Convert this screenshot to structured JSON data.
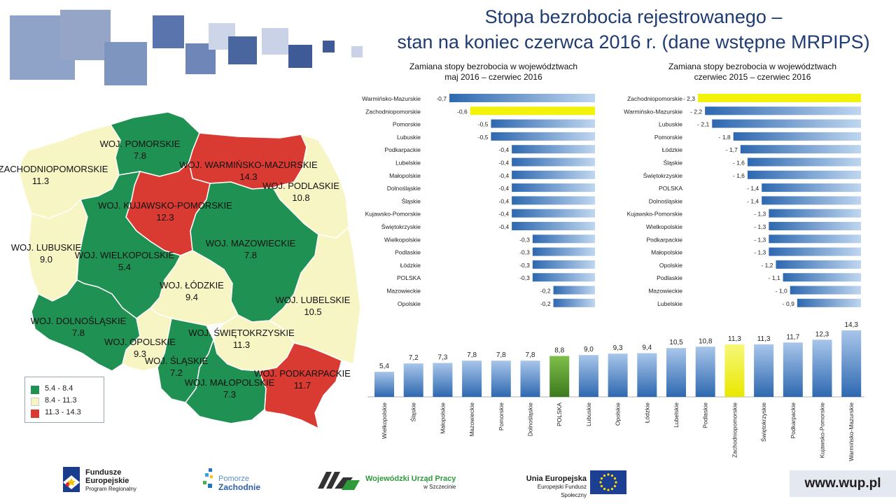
{
  "colors": {
    "green": "#1f9152",
    "cream": "#f7f5c4",
    "red": "#d93a32",
    "bar_blue": "#2e68b0",
    "bar_light": "#bfd6ef",
    "highlight_yellow": "#f2f20a",
    "polska_green": "#4e8a2a",
    "title_blue": "#1f3b73"
  },
  "title": {
    "line1": "Stopa bezrobocia rejestrowanego –",
    "line2": "stan na koniec czerwca 2016 r. (dane wstępne MRPIPS)"
  },
  "map": {
    "regions": [
      {
        "name": "WOJ. POMORSKIE",
        "value": "7.8",
        "color": "green"
      },
      {
        "name": "WOJ. ZACHODNIOPOMORSKIE",
        "value": "11.3",
        "color": "cream"
      },
      {
        "name": "WOJ. WARMIŃSKO-MAZURSKIE",
        "value": "14.3",
        "color": "red"
      },
      {
        "name": "WOJ. PODLASKIE",
        "value": "10.8",
        "color": "cream"
      },
      {
        "name": "WOJ. KUJAWSKO-POMORSKIE",
        "value": "12.3",
        "color": "red"
      },
      {
        "name": "WOJ. LUBUSKIE",
        "value": "9.0",
        "color": "cream"
      },
      {
        "name": "WOJ. WIELKOPOLSKIE",
        "value": "5.4",
        "color": "green"
      },
      {
        "name": "WOJ. MAZOWIECKIE",
        "value": "7.8",
        "color": "green"
      },
      {
        "name": "WOJ. ŁÓDZKIE",
        "value": "9.4",
        "color": "cream"
      },
      {
        "name": "WOJ. LUBELSKIE",
        "value": "10.5",
        "color": "cream"
      },
      {
        "name": "WOJ. DOLNOŚLĄSKIE",
        "value": "7.8",
        "color": "green"
      },
      {
        "name": "WOJ. ŚWIĘTOKRZYSKIE",
        "value": "11.3",
        "color": "cream"
      },
      {
        "name": "WOJ. OPOLSKIE",
        "value": "9.3",
        "color": "cream"
      },
      {
        "name": "WOJ. ŚLĄSKIE",
        "value": "7.2",
        "color": "green"
      },
      {
        "name": "WOJ. MAŁOPOLSKIE",
        "value": "7.3",
        "color": "green"
      },
      {
        "name": "WOJ. PODKARPACKIE",
        "value": "11.7",
        "color": "red"
      }
    ],
    "legend": [
      {
        "label": "5.4 - 8.4",
        "color": "green"
      },
      {
        "label": "8.4 - 11.3",
        "color": "cream"
      },
      {
        "label": "11.3 - 14.3",
        "color": "red"
      }
    ]
  },
  "chart_data": [
    {
      "type": "bar",
      "orientation": "horizontal",
      "title": "Zamiana  stopy bezrobocia  w województwach\nmaj 2016 – czerwiec 2016",
      "categories": [
        "Warmińsko-Mazurskie",
        "Zachodniopomorskie",
        "Pomorskie",
        "Lubuskie",
        "Podkarpackie",
        "Lubelskie",
        "Małopolskie",
        "Dolnośląskie",
        "Śląskie",
        "Kujawsko-Pomorskie",
        "Świętokrzyskie",
        "Wielkopolskie",
        "Podlaskie",
        "Łódzkie",
        "POLSKA",
        "Mazowieckie",
        "Opolskie"
      ],
      "values": [
        -0.7,
        -0.6,
        -0.5,
        -0.5,
        -0.4,
        -0.4,
        -0.4,
        -0.4,
        -0.4,
        -0.4,
        -0.4,
        -0.3,
        -0.3,
        -0.3,
        -0.3,
        -0.2,
        -0.2
      ],
      "labels": [
        "-0,7",
        "-0,6",
        "-0,5",
        "-0,5",
        "-0,4",
        "-0,4",
        "-0,4",
        "-0,4",
        "-0,4",
        "-0,4",
        "-0,4",
        "-0,3",
        "-0,3",
        "-0,3",
        "-0,3",
        "-0,2",
        "-0,2"
      ],
      "highlight": "Zachodniopomorskie"
    },
    {
      "type": "bar",
      "orientation": "horizontal",
      "title": "Zamiana  stopy bezrobocia  w województwach\nczerwiec 2015 – czerwiec 2016",
      "categories": [
        "Zachodniopomorskie",
        "Warmińsko-Mazurskie",
        "Lubuskie",
        "Pomorskie",
        "Łódzkie",
        "Śląskie",
        "Świętokrzyskie",
        "POLSKA",
        "Dolnośląskie",
        "Kujawsko-Pomorskie",
        "Wielkopolskie",
        "Podkarpackie",
        "Małopolskie",
        "Opolskie",
        "Podlaskie",
        "Mazowieckie",
        "Lubelskie"
      ],
      "values": [
        -2.3,
        -2.2,
        -2.1,
        -1.8,
        -1.7,
        -1.6,
        -1.6,
        -1.4,
        -1.4,
        -1.3,
        -1.3,
        -1.3,
        -1.3,
        -1.2,
        -1.1,
        -1.0,
        -0.9
      ],
      "labels": [
        "- 2,3",
        "- 2,2",
        "- 2,1",
        "- 1,8",
        "- 1,7",
        "- 1,6",
        "- 1,6",
        "- 1,4",
        "- 1,4",
        "- 1,3",
        "- 1,3",
        "- 1,3",
        "- 1,3",
        "- 1,2",
        "- 1,1",
        "- 1,0",
        "- 0,9"
      ],
      "highlight": "Zachodniopomorskie"
    },
    {
      "type": "bar",
      "orientation": "vertical",
      "categories": [
        "Wielkopolskie",
        "Śląskie",
        "Małopolskie",
        "Mazowieckie",
        "Pomorskie",
        "Dolnośląskie",
        "POLSKA",
        "Lubuskie",
        "Opolskie",
        "Łódzkie",
        "Lubelskie",
        "Podlaskie",
        "Zachodniopomorskie",
        "Świętokrzyskie",
        "Podkarpackie",
        "Kujawsko-Pomorskie",
        "Warmińsko-Mazurskie"
      ],
      "values": [
        5.4,
        7.2,
        7.3,
        7.8,
        7.8,
        7.8,
        8.8,
        9.0,
        9.3,
        9.4,
        10.5,
        10.8,
        11.3,
        11.3,
        11.7,
        12.3,
        14.3
      ],
      "labels": [
        "5,4",
        "7,2",
        "7,3",
        "7,8",
        "7,8",
        "7,8",
        "8,8",
        "9,0",
        "9,3",
        "9,4",
        "10,5",
        "10,8",
        "11,3",
        "11,3",
        "11,7",
        "12,3",
        "14,3"
      ],
      "highlight": "Zachodniopomorskie",
      "highlight_green": "POLSKA"
    }
  ],
  "footer": {
    "fe_line1": "Fundusze",
    "fe_line2": "Europejskie",
    "fe_line3": "Program Regionalny",
    "pomorze_line1": "Pomorze",
    "pomorze_line2": "Zachodnie",
    "wup_line1": "Wojewódzki Urząd Pracy",
    "wup_line2": "w Szczecinie",
    "ue_line1": "Unia Europejska",
    "ue_line2": "Europejski Fundusz Społeczny",
    "website": "www.wup.pl"
  }
}
